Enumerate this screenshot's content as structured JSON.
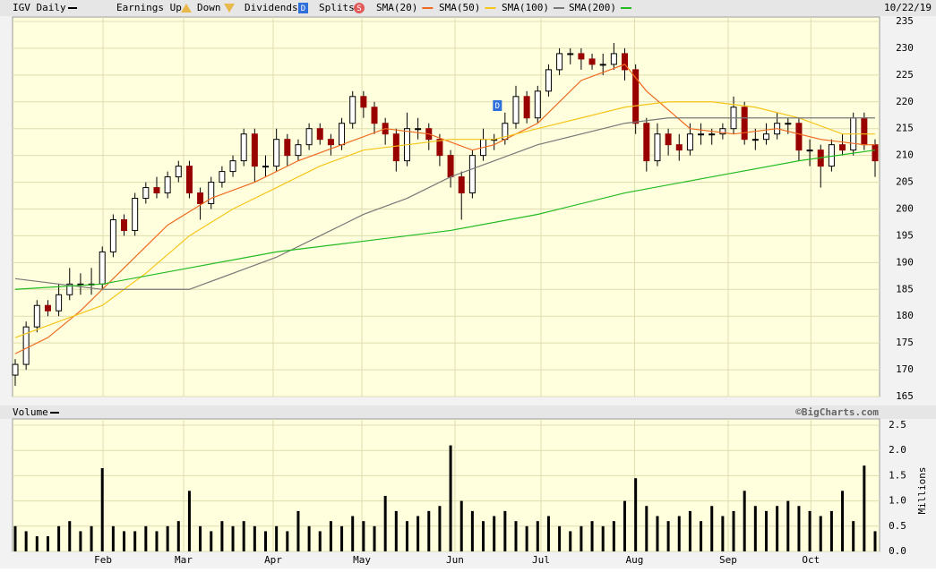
{
  "chart_data": [
    {
      "type": "candlestick",
      "title": "IGV Daily",
      "date": "10/22/19",
      "markers": [
        {
          "name": "Earnings Up"
        },
        {
          "name": "Down"
        },
        {
          "name": "Dividends",
          "icon": "D"
        },
        {
          "name": "Splits",
          "icon": "S"
        }
      ],
      "dividend_marker": {
        "label": "D",
        "x": 44.3
      },
      "xlim": [
        0,
        79
      ],
      "ylim": [
        165,
        235
      ],
      "yticks": [
        165,
        170,
        175,
        180,
        185,
        190,
        195,
        200,
        205,
        210,
        215,
        220,
        225,
        230,
        235
      ],
      "up_color": "#ffffff",
      "down_color": "#990000",
      "open": [
        169,
        171,
        178,
        182,
        181,
        184,
        186,
        186,
        186,
        192,
        198,
        196,
        202,
        204,
        203,
        206,
        208,
        203,
        201,
        205,
        207,
        209,
        214,
        208,
        208,
        213,
        210,
        212,
        215,
        213,
        212,
        216,
        221,
        219,
        216,
        214,
        209,
        215,
        215,
        213,
        210,
        206,
        203,
        210,
        213,
        213,
        216,
        221,
        217,
        222,
        226,
        229,
        229,
        228,
        227,
        227,
        229,
        226,
        216,
        209,
        214,
        212,
        211,
        214,
        214,
        214,
        215,
        219,
        213,
        213,
        214,
        216,
        216,
        211,
        211,
        208,
        212,
        211,
        217,
        212
      ],
      "high": [
        172,
        179,
        183,
        183,
        186,
        189,
        188,
        189,
        193,
        199,
        199,
        203,
        205,
        206,
        207,
        209,
        209,
        204,
        206,
        208,
        210,
        215,
        215,
        210,
        215,
        214,
        213,
        216,
        216,
        214,
        217,
        222,
        222,
        220,
        217,
        215,
        218,
        217,
        216,
        214,
        211,
        207,
        211,
        215,
        214,
        218,
        223,
        222,
        223,
        227,
        230,
        230,
        230,
        229,
        229,
        231,
        230,
        227,
        217,
        216,
        215,
        214,
        216,
        216,
        215,
        216,
        221,
        220,
        215,
        216,
        218,
        217,
        217,
        213,
        212,
        213,
        214,
        218,
        218,
        213
      ],
      "low": [
        167,
        170,
        177,
        180,
        180,
        183,
        184,
        184,
        185,
        191,
        195,
        195,
        201,
        202,
        202,
        205,
        202,
        198,
        200,
        204,
        206,
        208,
        205,
        206,
        207,
        208,
        209,
        211,
        212,
        210,
        211,
        215,
        217,
        214,
        212,
        207,
        208,
        213,
        211,
        208,
        204,
        198,
        202,
        209,
        211,
        212,
        215,
        216,
        216,
        221,
        225,
        227,
        226,
        226,
        225,
        226,
        224,
        214,
        207,
        208,
        210,
        209,
        210,
        212,
        212,
        213,
        214,
        212,
        211,
        212,
        213,
        214,
        209,
        208,
        204,
        207,
        210,
        210,
        211,
        206
      ],
      "close": [
        171,
        178,
        182,
        181,
        184,
        186,
        186,
        186,
        192,
        198,
        196,
        202,
        204,
        203,
        206,
        208,
        203,
        201,
        205,
        207,
        209,
        214,
        208,
        208,
        213,
        210,
        212,
        215,
        213,
        212,
        216,
        221,
        219,
        216,
        214,
        209,
        215,
        215,
        213,
        210,
        206,
        203,
        210,
        213,
        213,
        216,
        221,
        217,
        222,
        226,
        229,
        229,
        228,
        227,
        227,
        229,
        226,
        216,
        209,
        214,
        212,
        211,
        214,
        214,
        214,
        215,
        219,
        213,
        213,
        214,
        216,
        216,
        211,
        211,
        208,
        212,
        211,
        217,
        212,
        209
      ],
      "series": [
        {
          "name": "SMA(20)",
          "color": "#f06a1e",
          "x": [
            0,
            3,
            6,
            10,
            14,
            18,
            22,
            26,
            30,
            34,
            38,
            42,
            44,
            48,
            52,
            56,
            58,
            62,
            66,
            70,
            74,
            78,
            79
          ],
          "values": [
            173,
            176,
            181,
            189,
            197,
            202,
            205,
            209,
            212,
            215,
            214,
            211,
            212,
            216,
            224,
            227,
            222,
            215,
            214,
            215,
            213,
            212,
            212
          ]
        },
        {
          "name": "SMA(50)",
          "color": "#f5c518",
          "x": [
            0,
            4,
            8,
            12,
            16,
            20,
            24,
            28,
            32,
            36,
            40,
            44,
            48,
            52,
            56,
            60,
            64,
            68,
            72,
            76,
            79
          ],
          "values": [
            176,
            179,
            182,
            188,
            195,
            200,
            204,
            208,
            211,
            212,
            213,
            213,
            215,
            217,
            219,
            220,
            220,
            219,
            217,
            214,
            214
          ]
        },
        {
          "name": "SMA(100)",
          "color": "#777777",
          "x": [
            0,
            4,
            8,
            12,
            16,
            20,
            24,
            28,
            32,
            36,
            40,
            44,
            48,
            52,
            56,
            60,
            64,
            68,
            72,
            76,
            79
          ],
          "values": [
            187,
            186,
            185,
            185,
            185,
            188,
            191,
            195,
            199,
            202,
            206,
            209,
            212,
            214,
            216,
            217,
            217,
            217,
            217,
            217,
            217
          ]
        },
        {
          "name": "SMA(200)",
          "color": "#22bb22",
          "x": [
            0,
            8,
            16,
            24,
            32,
            40,
            48,
            56,
            64,
            72,
            79
          ],
          "values": [
            185,
            186,
            189,
            192,
            194,
            196,
            199,
            203,
            206,
            209,
            211
          ]
        }
      ]
    },
    {
      "type": "bar",
      "title": "Volume",
      "source": "©BigCharts.com",
      "ylabel": "Millions",
      "color": "#000000",
      "xlim": [
        0,
        79
      ],
      "ylim": [
        0,
        2.5
      ],
      "yticks": [
        {
          "value": 0,
          "label": "0.0"
        },
        0.5,
        {
          "value": 1,
          "label": "1.0"
        },
        1.5,
        {
          "value": 2,
          "label": "2.0"
        },
        2.5
      ],
      "xticks": [
        {
          "value": 8.07,
          "label": "Feb"
        },
        {
          "value": 15.47,
          "label": "Mar"
        },
        {
          "value": 23.7,
          "label": "Apr"
        },
        {
          "value": 31.85,
          "label": "May"
        },
        {
          "value": 40.4,
          "label": "Jun"
        },
        {
          "value": 48.3,
          "label": "Jul"
        },
        {
          "value": 56.9,
          "label": "Aug"
        },
        {
          "value": 65.5,
          "label": "Sep"
        },
        {
          "value": 73.1,
          "label": "Oct"
        }
      ],
      "values": [
        0.5,
        0.4,
        0.3,
        0.3,
        0.5,
        0.6,
        0.4,
        0.5,
        1.65,
        0.5,
        0.4,
        0.4,
        0.5,
        0.4,
        0.5,
        0.6,
        1.2,
        0.5,
        0.4,
        0.6,
        0.5,
        0.6,
        0.5,
        0.4,
        0.5,
        0.4,
        0.8,
        0.5,
        0.4,
        0.6,
        0.5,
        0.7,
        0.6,
        0.5,
        1.1,
        0.8,
        0.6,
        0.7,
        0.8,
        0.9,
        2.1,
        1.0,
        0.8,
        0.6,
        0.7,
        0.8,
        0.6,
        0.5,
        0.6,
        0.7,
        0.5,
        0.4,
        0.5,
        0.6,
        0.5,
        0.6,
        1.0,
        1.45,
        0.9,
        0.7,
        0.6,
        0.7,
        0.8,
        0.6,
        0.9,
        0.7,
        0.8,
        1.2,
        0.9,
        0.8,
        0.9,
        1.0,
        0.9,
        0.8,
        0.7,
        0.8,
        1.2,
        0.6,
        1.7,
        0.4
      ]
    }
  ]
}
